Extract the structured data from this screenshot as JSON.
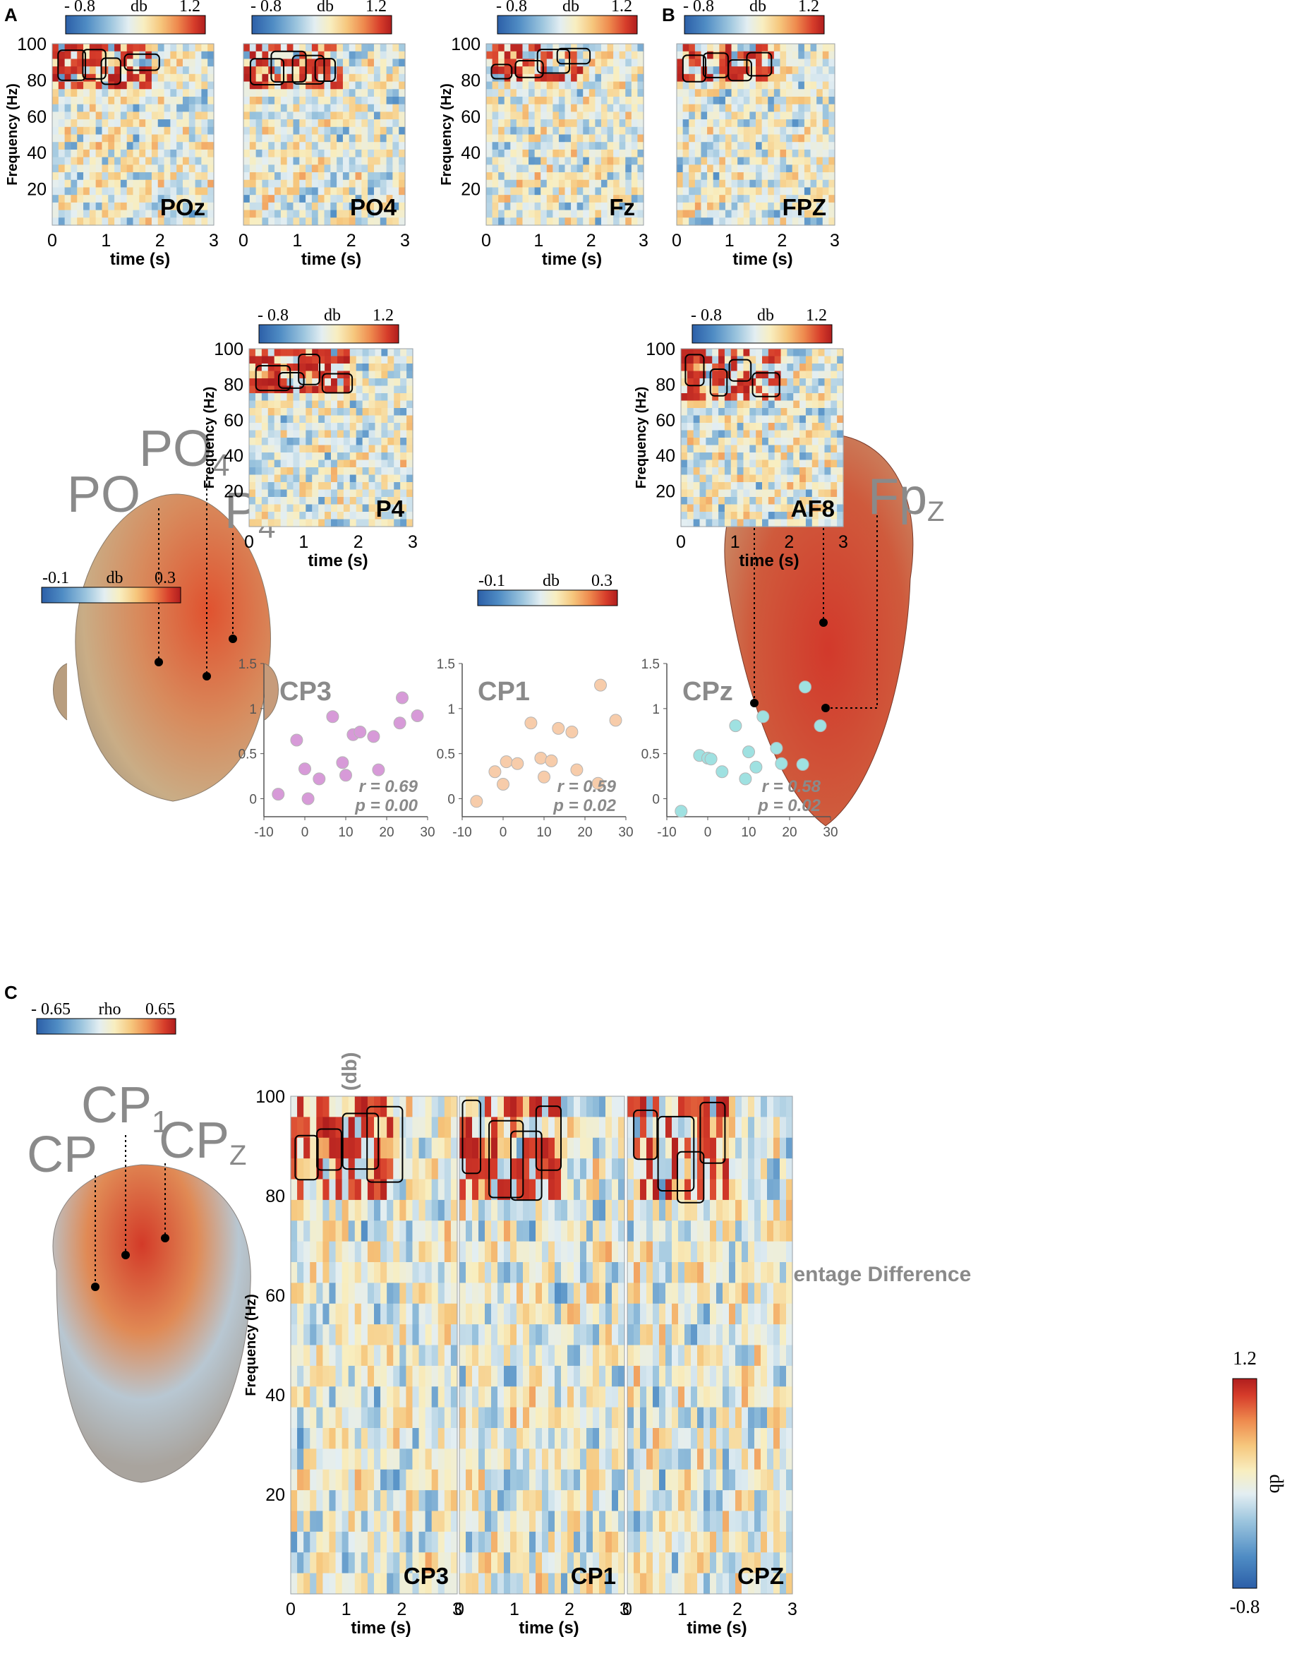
{
  "colors": {
    "cmap": [
      "#2c5fa8",
      "#4f8cc4",
      "#9cc5de",
      "#e3eef2",
      "#f8eec0",
      "#f6c77d",
      "#ee8a4e",
      "#d63c2a",
      "#b01e1e"
    ],
    "label_gray": "#8a8a8a",
    "cp3_dots": "#d79ad8",
    "cp1_dots": "#f7ccaa",
    "cpz_dots": "#9fe1e1",
    "head_a": "#d98a5a",
    "head_b": "#c8452b",
    "head_c": "#b9b2b0"
  },
  "panels": {
    "A": "A",
    "B": "B",
    "C": "C"
  },
  "spectro_common": {
    "ylabel": "Frequency (Hz)",
    "xlabel": "time  (s)",
    "x_ticks": [
      "0",
      "1",
      "2",
      "3"
    ],
    "y_ticks": [
      "100",
      "80",
      "60",
      "40",
      "20"
    ],
    "xlim": [
      0,
      3
    ],
    "ylim": [
      0,
      100
    ]
  },
  "colorbars": {
    "spectrogram": {
      "min_label": "- 0.8",
      "unit": "db",
      "max_label": "1.2",
      "range": [
        -0.8,
        1.2
      ]
    },
    "head_power": {
      "min_label": "-0.1",
      "unit": "db",
      "max_label": "0.3",
      "range": [
        -0.1,
        0.3
      ]
    },
    "head_power_b": {
      "min_label": "-0.1",
      "unit": "db",
      "max_label": "0.3",
      "range": [
        -0.1,
        0.3
      ]
    },
    "rho": {
      "min_label": "- 0.65",
      "unit": "rho",
      "max_label": "0.65",
      "range": [
        -0.65,
        0.65
      ]
    },
    "vertical": {
      "max_label": "1.2",
      "min_label": "-0.8",
      "unit": "db",
      "range": [
        -0.8,
        1.2
      ]
    }
  },
  "electrodes": {
    "a": {
      "po": "PO",
      "po4": "PO",
      "po4_sub": "4",
      "p4": "P",
      "p4_sub": "4"
    },
    "b": {
      "af8": "AF",
      "af8_sub": "8",
      "fz": "F",
      "fz_sub": "Z",
      "fpz": "Fp",
      "fpz_sub": "Z"
    },
    "c": {
      "cp": "CP",
      "cp1": "CP",
      "cp1_sub": "1",
      "cpz": "CP",
      "cpz_sub": "Z"
    }
  },
  "chart_data": [
    {
      "type": "heatmap",
      "panel": "A",
      "channel_label": "POz",
      "title": "",
      "xlabel": "time  (s)",
      "ylabel": "Frequency (Hz)",
      "xlim": [
        0,
        3
      ],
      "ylim": [
        0,
        100
      ],
      "colorbar": "db",
      "significant_band_hz": [
        75,
        100
      ]
    },
    {
      "type": "heatmap",
      "panel": "A",
      "channel_label": "PO4",
      "title": "",
      "xlabel": "time  (s)",
      "ylabel": "",
      "xlim": [
        0,
        3
      ],
      "ylim": [
        0,
        100
      ],
      "colorbar": "db",
      "significant_band_hz": [
        75,
        100
      ]
    },
    {
      "type": "heatmap",
      "panel": "A",
      "channel_label": "P4",
      "title": "",
      "xlabel": "time  (s)",
      "ylabel": "Frequency (Hz)",
      "xlim": [
        0,
        3
      ],
      "ylim": [
        0,
        100
      ],
      "colorbar": "db",
      "significant_band_hz": [
        75,
        100
      ]
    },
    {
      "type": "heatmap",
      "panel": "B",
      "channel_label": "Fz",
      "title": "",
      "xlabel": "time  (s)",
      "ylabel": "Frequency (Hz)",
      "xlim": [
        0,
        3
      ],
      "ylim": [
        0,
        100
      ],
      "colorbar": "db",
      "significant_band_hz": [
        80,
        100
      ]
    },
    {
      "type": "heatmap",
      "panel": "B",
      "channel_label": "FPZ",
      "title": "",
      "xlabel": "time  (s)",
      "ylabel": "",
      "xlim": [
        0,
        3
      ],
      "ylim": [
        0,
        100
      ],
      "colorbar": "db",
      "significant_band_hz": [
        78,
        100
      ]
    },
    {
      "type": "heatmap",
      "panel": "B",
      "channel_label": "AF8",
      "title": "",
      "xlabel": "time  (s)",
      "ylabel": "Frequency (Hz)",
      "xlim": [
        0,
        3
      ],
      "ylim": [
        0,
        100
      ],
      "colorbar": "db",
      "significant_band_hz": [
        72,
        100
      ]
    },
    {
      "type": "heatmap",
      "panel": "C",
      "channel_label": "CP3",
      "title": "",
      "xlabel": "time  (s)",
      "ylabel": "Frequency (Hz)",
      "xlim": [
        0,
        3
      ],
      "ylim": [
        0,
        100
      ],
      "colorbar": "db",
      "significant_band_hz": [
        78,
        100
      ]
    },
    {
      "type": "heatmap",
      "panel": "C",
      "channel_label": "CP1",
      "title": "",
      "xlabel": "time  (s)",
      "ylabel": "",
      "xlim": [
        0,
        3
      ],
      "ylim": [
        0,
        100
      ],
      "colorbar": "db",
      "significant_band_hz": [
        78,
        100
      ]
    },
    {
      "type": "heatmap",
      "panel": "C",
      "channel_label": "CPZ",
      "title": "",
      "xlabel": "time  (s)",
      "ylabel": "",
      "xlim": [
        0,
        3
      ],
      "ylim": [
        0,
        100
      ],
      "colorbar": "db",
      "significant_band_hz": [
        78,
        100
      ]
    },
    {
      "type": "scatter",
      "panel": "C",
      "title": "CP3",
      "xlabel": "Score Percentage Difference",
      "ylabel": "Gamma Difference (db)",
      "xlim": [
        -10,
        30
      ],
      "ylim": [
        -0.2,
        1.5
      ],
      "x_ticks": [
        -10,
        0,
        10,
        20,
        30
      ],
      "y_ticks": [
        0,
        0.5,
        1,
        1.5
      ],
      "x": [
        -6.5,
        -2,
        0,
        0.8,
        3.5,
        6.8,
        9.2,
        10,
        11.8,
        13.5,
        16.8,
        18,
        23.2,
        23.8,
        27.5
      ],
      "y": [
        0.05,
        0.65,
        0.33,
        0.0,
        0.22,
        0.91,
        0.4,
        0.26,
        0.71,
        0.74,
        0.69,
        0.32,
        0.84,
        1.12,
        0.92
      ],
      "r_label": "r = 0.69",
      "p_label": "p = 0.00"
    },
    {
      "type": "scatter",
      "panel": "C",
      "title": "CP1",
      "xlabel": "",
      "ylabel": "",
      "xlim": [
        -10,
        30
      ],
      "ylim": [
        -0.2,
        1.5
      ],
      "x_ticks": [
        -10,
        0,
        10,
        20,
        30
      ],
      "y_ticks": [
        0,
        0.5,
        1,
        1.5
      ],
      "x": [
        -6.5,
        -2,
        0,
        0.8,
        3.5,
        6.8,
        9.2,
        10,
        11.8,
        13.5,
        16.8,
        18,
        23.2,
        23.8,
        27.5
      ],
      "y": [
        -0.03,
        0.3,
        0.16,
        0.41,
        0.39,
        0.84,
        0.45,
        0.24,
        0.42,
        0.78,
        0.74,
        0.32,
        0.17,
        1.26,
        0.87
      ],
      "r_label": "r = 0.59",
      "p_label": "p = 0.02"
    },
    {
      "type": "scatter",
      "panel": "C",
      "title": "CPz",
      "xlabel": "",
      "ylabel": "",
      "xlim": [
        -10,
        30
      ],
      "ylim": [
        -0.2,
        1.5
      ],
      "x_ticks": [
        -10,
        0,
        10,
        20,
        30
      ],
      "y_ticks": [
        0,
        0.5,
        1,
        1.5
      ],
      "x": [
        -6.5,
        -2,
        0,
        0.8,
        3.5,
        6.8,
        9.2,
        10,
        11.8,
        13.5,
        16.8,
        18,
        23.2,
        23.8,
        27.5
      ],
      "y": [
        -0.14,
        0.48,
        0.45,
        0.44,
        0.3,
        0.81,
        0.22,
        0.52,
        0.35,
        0.91,
        0.56,
        0.39,
        0.38,
        1.24,
        0.81
      ],
      "r_label": "r = 0.58",
      "p_label": "p = 0.02"
    }
  ]
}
